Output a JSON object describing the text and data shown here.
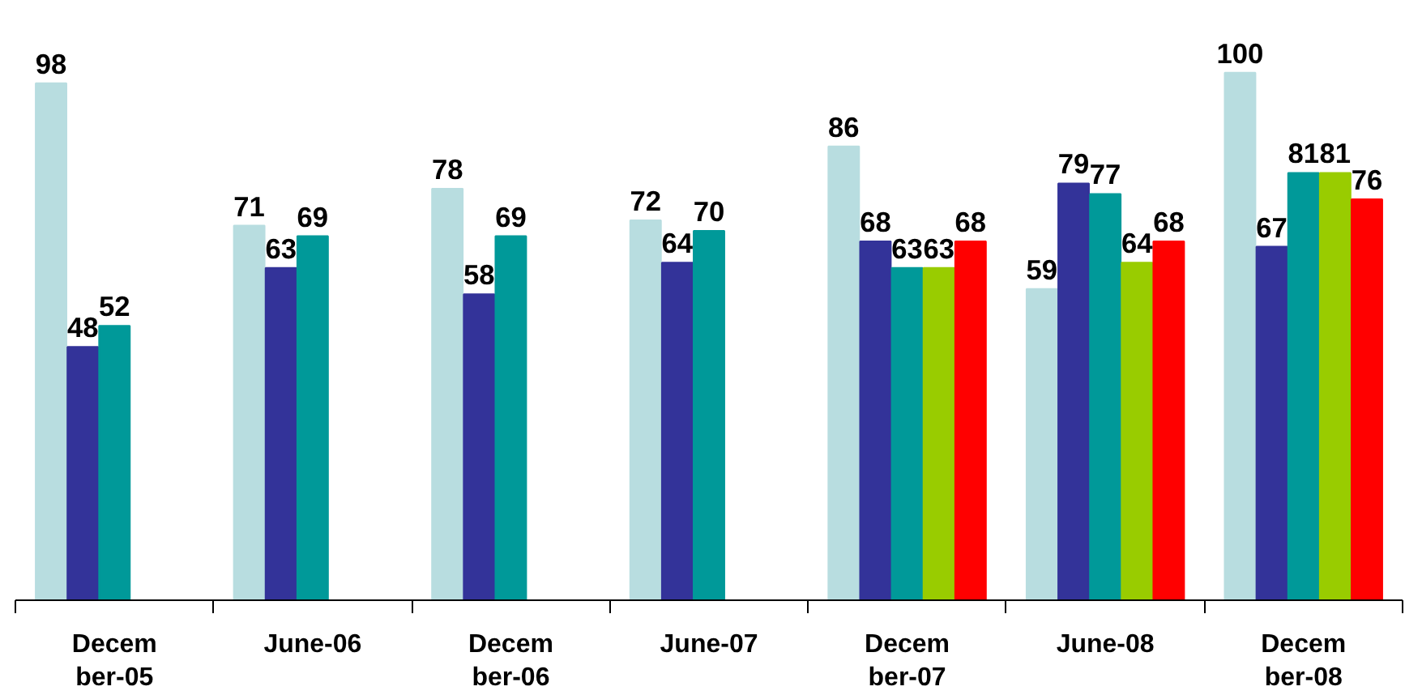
{
  "chart_data": {
    "type": "bar",
    "categories": [
      "December-05",
      "June-06",
      "December-06",
      "June-07",
      "December-07",
      "June-08",
      "December-08"
    ],
    "series": [
      {
        "color": "#b8dde0",
        "values": [
          98,
          71,
          78,
          72,
          86,
          59,
          100
        ]
      },
      {
        "color": "#333399",
        "values": [
          48,
          63,
          58,
          64,
          68,
          79,
          67
        ]
      },
      {
        "color": "#009999",
        "values": [
          52,
          69,
          69,
          70,
          63,
          77,
          81
        ]
      },
      {
        "color": "#99cc00",
        "values": [
          null,
          null,
          null,
          null,
          63,
          64,
          81
        ]
      },
      {
        "color": "#ff0000",
        "values": [
          null,
          null,
          null,
          null,
          68,
          68,
          76
        ]
      }
    ],
    "data_labels": true,
    "tick_labels": "x"
  }
}
